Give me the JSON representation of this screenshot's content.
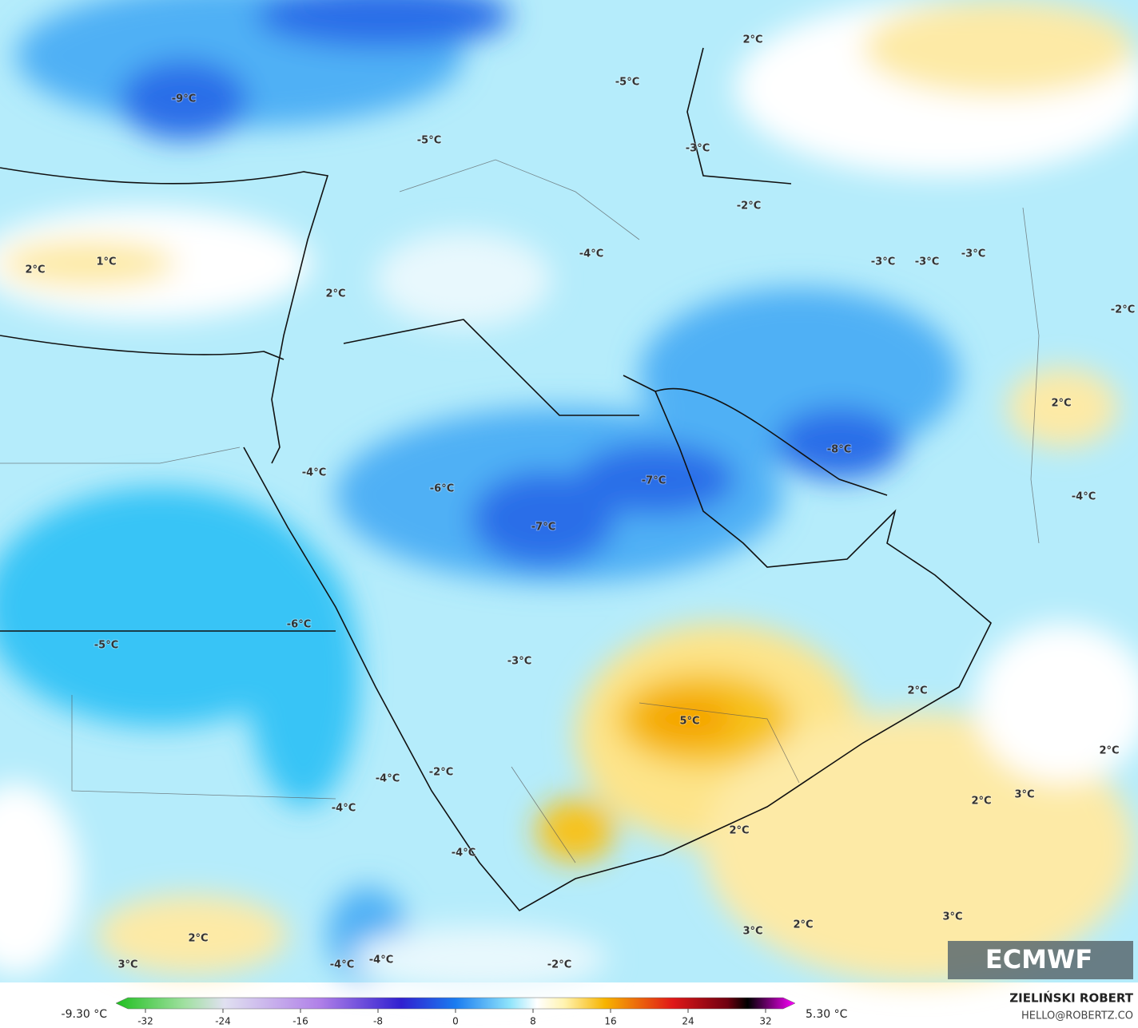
{
  "map": {
    "labels": [
      "2°C",
      "-9°C",
      "-5°C",
      "-5°C",
      "-3°C",
      "-2°C",
      "2°C",
      "1°C",
      "2°C",
      "-4°C",
      "-3°C",
      "-3°C",
      "-3°C",
      "-2°C",
      "2°C",
      "-8°C",
      "-7°C",
      "-6°C",
      "-4°C",
      "-7°C",
      "-4°C",
      "-6°C",
      "-5°C",
      "-3°C",
      "2°C",
      "5°C",
      "2°C",
      "-2°C",
      "-4°C",
      "-4°C",
      "2°C",
      "3°C",
      "2°C",
      "-4°C",
      "2°C",
      "3°C",
      "3°C",
      "2°C",
      "3°C",
      "-2°C",
      "-4°C",
      "-4°C"
    ],
    "logo": "ECMWF"
  },
  "colorbar": {
    "min_label": "-9.30 °C",
    "max_label": "5.30 °C",
    "ticks": [
      -32,
      -24,
      -16,
      -8,
      0,
      8,
      16,
      24,
      32
    ],
    "range": [
      -32,
      32
    ]
  },
  "credit": {
    "author": "ZIELIŃSKI ROBERT",
    "contact": "HELLO@ROBERTZ.CO"
  }
}
